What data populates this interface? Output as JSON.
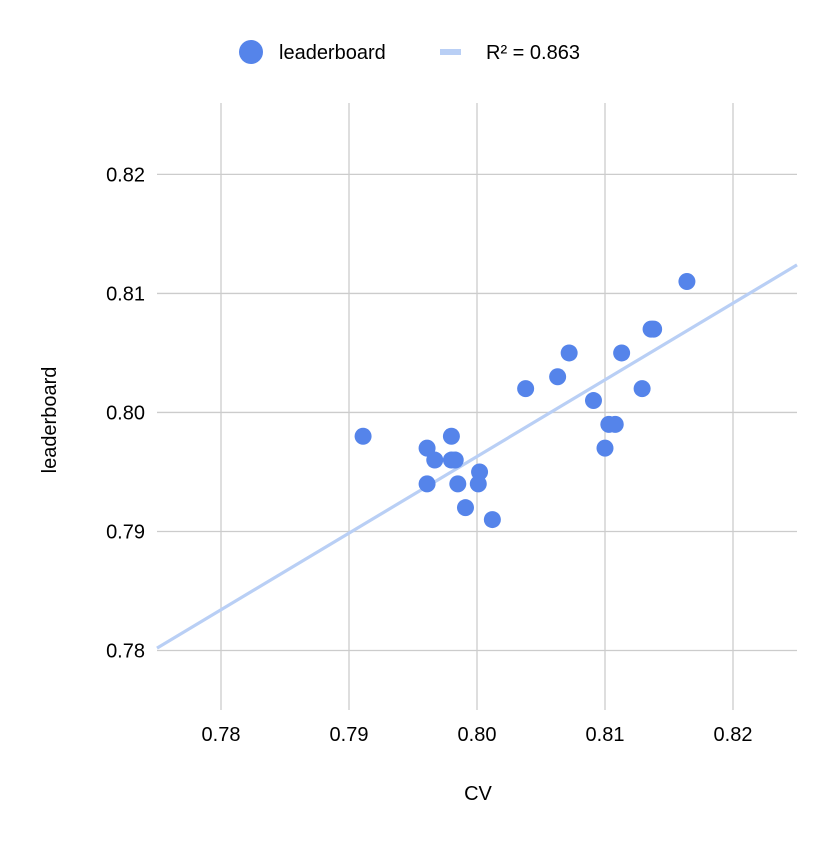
{
  "chart_data": {
    "type": "scatter",
    "xlabel": "CV",
    "ylabel": "leaderboard",
    "xlim": [
      0.775,
      0.825
    ],
    "ylim": [
      0.775,
      0.826
    ],
    "x_ticks": [
      0.78,
      0.79,
      0.8,
      0.81,
      0.82
    ],
    "y_ticks": [
      0.78,
      0.79,
      0.8,
      0.81,
      0.82
    ],
    "x_tick_labels": [
      "0.78",
      "0.79",
      "0.80",
      "0.81",
      "0.82"
    ],
    "y_tick_labels": [
      "0.78",
      "0.79",
      "0.80",
      "0.81",
      "0.82"
    ],
    "grid": true,
    "legend_position": "top",
    "series": [
      {
        "name": "leaderboard",
        "color": "#5584ea",
        "points": [
          {
            "x": 0.7911,
            "y": 0.798
          },
          {
            "x": 0.7961,
            "y": 0.797
          },
          {
            "x": 0.7967,
            "y": 0.796
          },
          {
            "x": 0.7961,
            "y": 0.794
          },
          {
            "x": 0.798,
            "y": 0.798
          },
          {
            "x": 0.798,
            "y": 0.796
          },
          {
            "x": 0.7983,
            "y": 0.796
          },
          {
            "x": 0.7985,
            "y": 0.794
          },
          {
            "x": 0.7991,
            "y": 0.792
          },
          {
            "x": 0.8002,
            "y": 0.795
          },
          {
            "x": 0.8001,
            "y": 0.794
          },
          {
            "x": 0.8012,
            "y": 0.791
          },
          {
            "x": 0.8038,
            "y": 0.802
          },
          {
            "x": 0.8063,
            "y": 0.803
          },
          {
            "x": 0.8072,
            "y": 0.805
          },
          {
            "x": 0.8091,
            "y": 0.801
          },
          {
            "x": 0.81,
            "y": 0.797
          },
          {
            "x": 0.8103,
            "y": 0.799
          },
          {
            "x": 0.8108,
            "y": 0.799
          },
          {
            "x": 0.8113,
            "y": 0.805
          },
          {
            "x": 0.8129,
            "y": 0.802
          },
          {
            "x": 0.8136,
            "y": 0.807
          },
          {
            "x": 0.8138,
            "y": 0.807
          },
          {
            "x": 0.8164,
            "y": 0.811
          }
        ]
      }
    ],
    "trendline": {
      "name": "R² = 0.863",
      "color": "#b9cff5",
      "points": [
        {
          "x": 0.775,
          "y": 0.7802
        },
        {
          "x": 0.825,
          "y": 0.8124
        }
      ]
    },
    "legend": [
      {
        "label": "leaderboard",
        "marker": "circle",
        "color": "#5584ea"
      },
      {
        "label": "R² = 0.863",
        "marker": "line",
        "color": "#b9cff5"
      }
    ]
  }
}
